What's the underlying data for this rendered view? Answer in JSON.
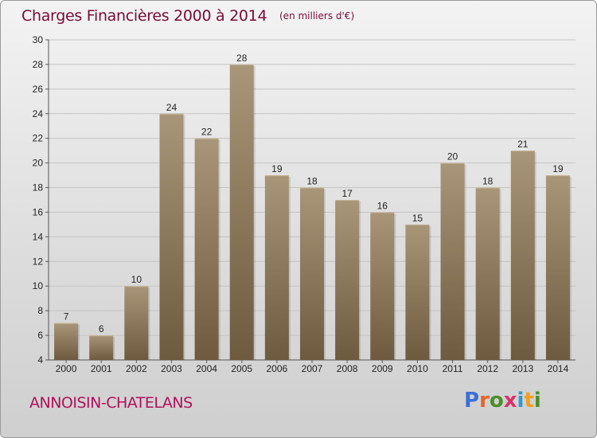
{
  "header": {
    "title": "Charges Financières 2000 à 2014",
    "subtitle": "(en milliers d'€)"
  },
  "footer": {
    "commune": "ANNOISIN-CHATELANS",
    "logo": "Proxiti",
    "logo_colors": [
      "#3b6fd6",
      "#e8632a",
      "#4a8f2a",
      "#d8326a",
      "#2a9ad6",
      "#f0a020",
      "#4a8f2a"
    ]
  },
  "colors": {
    "title": "#7a0b36",
    "commune": "#b0125a",
    "bar_top": "#a99679",
    "bar_bottom": "#6e5a3e",
    "grid": "#c4c4c4"
  },
  "chart_data": {
    "type": "bar",
    "title": "Charges Financières 2000 à 2014",
    "subtitle": "(en milliers d'€)",
    "categories": [
      "2000",
      "2001",
      "2002",
      "2003",
      "2004",
      "2005",
      "2006",
      "2007",
      "2008",
      "2009",
      "2010",
      "2011",
      "2012",
      "2013",
      "2014"
    ],
    "values": [
      7,
      6,
      10,
      24,
      22,
      28,
      19,
      18,
      17,
      16,
      15,
      20,
      18,
      21,
      19
    ],
    "ylim": [
      4,
      30
    ],
    "yticks": [
      4,
      6,
      8,
      10,
      12,
      14,
      16,
      18,
      20,
      22,
      24,
      26,
      28,
      30
    ],
    "grid": true,
    "data_labels": true
  }
}
